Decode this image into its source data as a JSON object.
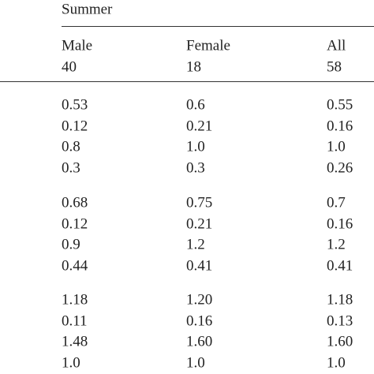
{
  "table": {
    "group_header": "Summer",
    "columns": [
      {
        "label": "Male",
        "n": "40"
      },
      {
        "label": "Female",
        "n": "18"
      },
      {
        "label": "All",
        "n": "58"
      }
    ],
    "groups": [
      [
        [
          "0.53",
          "0.6",
          "0.55"
        ],
        [
          "0.12",
          "0.21",
          "0.16"
        ],
        [
          "0.8",
          "1.0",
          "1.0"
        ],
        [
          "0.3",
          "0.3",
          "0.26"
        ]
      ],
      [
        [
          "0.68",
          "0.75",
          "0.7"
        ],
        [
          "0.12",
          "0.21",
          "0.16"
        ],
        [
          "0.9",
          "1.2",
          "1.2"
        ],
        [
          "0.44",
          "0.41",
          "0.41"
        ]
      ],
      [
        [
          "1.18",
          "1.20",
          "1.18"
        ],
        [
          "0.11",
          "0.16",
          "0.13"
        ],
        [
          "1.48",
          "1.60",
          "1.60"
        ],
        [
          "1.0",
          "1.0",
          "1.0"
        ]
      ]
    ]
  }
}
